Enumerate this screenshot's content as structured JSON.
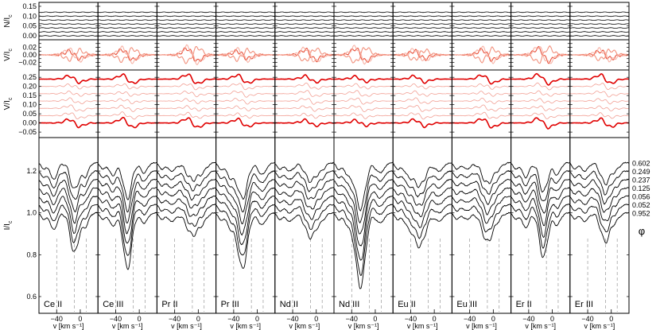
{
  "chart_data": {
    "type": "line",
    "panels": [
      {
        "label": "Ce II",
        "center": -10,
        "n_depth": 0.13,
        "n_width": 7,
        "i_depth": 0.08,
        "i_width": 6
      },
      {
        "label": "Ce III",
        "center": -20,
        "n_depth": 0.2,
        "n_width": 7,
        "i_depth": 0.06,
        "i_width": 6
      },
      {
        "label": "Pr II",
        "center": -10,
        "n_depth": 0.05,
        "n_width": 10,
        "i_depth": 0.04,
        "i_width": 7
      },
      {
        "label": "Pr III",
        "center": -25,
        "n_depth": 0.2,
        "n_width": 8,
        "i_depth": 0.07,
        "i_width": 7
      },
      {
        "label": "Nd II",
        "center": -10,
        "n_depth": 0.06,
        "n_width": 9,
        "i_depth": 0.04,
        "i_width": 7
      },
      {
        "label": "Nd III",
        "center": -25,
        "n_depth": 0.28,
        "n_width": 8,
        "i_depth": 0.06,
        "i_width": 7
      },
      {
        "label": "Eu II",
        "center": -25,
        "n_depth": 0.1,
        "n_width": 10,
        "i_depth": 0.05,
        "i_width": 7
      },
      {
        "label": "Eu III",
        "center": -10,
        "n_depth": 0.08,
        "n_width": 9,
        "i_depth": 0.03,
        "i_width": 7
      },
      {
        "label": "Er II",
        "center": -15,
        "n_depth": 0.15,
        "n_width": 7,
        "i_depth": 0.07,
        "i_width": 6
      },
      {
        "label": "Er III",
        "center": -10,
        "n_depth": 0.08,
        "n_width": 8,
        "i_depth": 0.04,
        "i_width": 6
      }
    ],
    "phases": [
      "0.602",
      "0.249",
      "0.237",
      "0.125",
      "0.056",
      "0.052",
      "0.952"
    ],
    "phase_label": "φ",
    "x": {
      "label": "v [km s⁻¹]",
      "min": -70,
      "max": 30,
      "ticks": [
        -40,
        0
      ],
      "tick_labels": [
        "−40",
        "0"
      ],
      "reference_lines": [
        -40,
        -10,
        10
      ]
    },
    "rows": [
      {
        "id": "N",
        "ylabel": "N/I",
        "ylabel_sub": "c",
        "ylim": [
          -0.02,
          0.17
        ],
        "ticks": [
          0.0,
          0.05,
          0.1,
          0.15
        ],
        "tick_labels": [
          "0.00",
          "0.05",
          "0.10",
          "0.15"
        ],
        "offset_step": 0.02,
        "colors": [
          "#000000"
        ]
      },
      {
        "id": "V1",
        "ylabel": "V/I",
        "ylabel_sub": "c",
        "ylim": [
          -0.04,
          0.04
        ],
        "ticks": [
          -0.03,
          -0.02,
          -0.01,
          0.0,
          0.01,
          0.02,
          0.03
        ],
        "tick_labels": [
          "",
          "−0.02",
          "",
          "0.00",
          "",
          "0.02",
          ""
        ],
        "colors": [
          "#e8503a",
          "#f2917d",
          "#f7b3a6"
        ]
      },
      {
        "id": "V2",
        "ylabel": "V/I",
        "ylabel_sub": "c",
        "ylim": [
          -0.08,
          0.29
        ],
        "ticks": [
          -0.05,
          0.0,
          0.05,
          0.1,
          0.15,
          0.2,
          0.25
        ],
        "tick_labels": [
          "−0.05",
          "0.00",
          "0.05",
          "0.10",
          "0.15",
          "0.20",
          "0.25"
        ],
        "offset_step": 0.04,
        "colors": [
          "#e00000",
          "#f2a095"
        ]
      },
      {
        "id": "I",
        "ylabel": "I/I",
        "ylabel_sub": "c",
        "ylim": [
          0.52,
          1.36
        ],
        "ticks": [
          0.6,
          0.8,
          1.0,
          1.2
        ],
        "tick_labels": [
          "0.6",
          "0.8",
          "1.0",
          "1.2"
        ],
        "offset_step": 0.04,
        "colors": [
          "#000000"
        ]
      }
    ]
  }
}
